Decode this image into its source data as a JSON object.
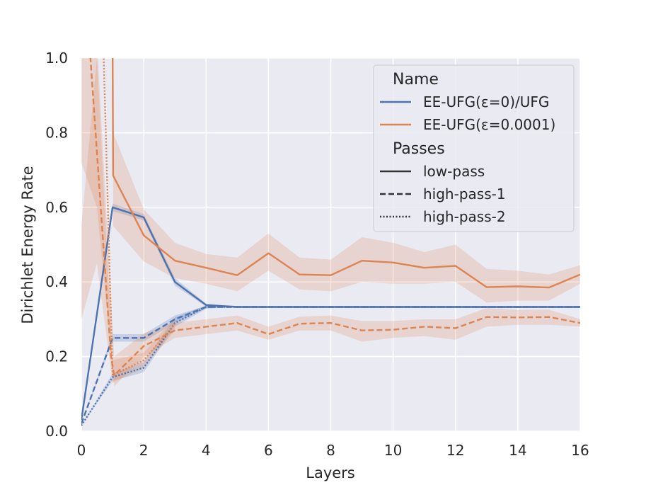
{
  "chart_data": {
    "type": "line",
    "xlabel": "Layers",
    "ylabel": "Dirichlet Energy Rate",
    "xlim": [
      0,
      16
    ],
    "ylim": [
      0,
      1
    ],
    "xticks": [
      "0",
      "2",
      "4",
      "6",
      "8",
      "10",
      "12",
      "14",
      "16"
    ],
    "yticks": [
      "0.0",
      "0.2",
      "0.4",
      "0.6",
      "0.8",
      "1.0"
    ],
    "grid": true,
    "legend": {
      "placement": "top-right",
      "hue_title": "Name",
      "hue_entries": [
        "EE-UFG(ε=0)/UFG",
        "EE-UFG(ε=0.0001)"
      ],
      "style_title": "Passes",
      "style_entries": [
        "low-pass",
        "high-pass-1",
        "high-pass-2"
      ]
    },
    "colors": {
      "EE-UFG(ε=0)/UFG": "#4c72b0",
      "EE-UFG(ε=0.0001)": "#dd8452",
      "background": "#eaeaf2",
      "grid": "#ffffff"
    },
    "series": [
      {
        "name": "EE-UFG(ε=0)/UFG",
        "pass": "low-pass",
        "dash": "solid",
        "points": [
          [
            0,
            0.03
          ],
          [
            1,
            0.6
          ],
          [
            2,
            0.573
          ],
          [
            3,
            0.4
          ],
          [
            4,
            0.338
          ],
          [
            5,
            0.333
          ],
          [
            6,
            0.333
          ],
          [
            7,
            0.333
          ],
          [
            8,
            0.333
          ],
          [
            9,
            0.333
          ],
          [
            10,
            0.333
          ],
          [
            11,
            0.333
          ],
          [
            12,
            0.333
          ],
          [
            13,
            0.333
          ],
          [
            14,
            0.333
          ],
          [
            15,
            0.333
          ],
          [
            16,
            0.333
          ]
        ],
        "band": [
          [
            0,
            0.03,
            0.03
          ],
          [
            1,
            0.59,
            0.61
          ],
          [
            2,
            0.565,
            0.582
          ],
          [
            3,
            0.39,
            0.41
          ],
          [
            4,
            0.334,
            0.342
          ],
          [
            5,
            0.333,
            0.334
          ],
          [
            6,
            0.333,
            0.333
          ],
          [
            16,
            0.333,
            0.333
          ]
        ]
      },
      {
        "name": "EE-UFG(ε=0)/UFG",
        "pass": "high-pass-1",
        "dash": "dashed",
        "points": [
          [
            0,
            0.02
          ],
          [
            1,
            0.25
          ],
          [
            2,
            0.25
          ],
          [
            3,
            0.3
          ],
          [
            4,
            0.333
          ],
          [
            5,
            0.333
          ],
          [
            6,
            0.333
          ],
          [
            7,
            0.333
          ],
          [
            8,
            0.333
          ],
          [
            9,
            0.333
          ],
          [
            10,
            0.333
          ],
          [
            11,
            0.333
          ],
          [
            12,
            0.333
          ],
          [
            13,
            0.333
          ],
          [
            14,
            0.333
          ],
          [
            15,
            0.333
          ],
          [
            16,
            0.333
          ]
        ],
        "band": [
          [
            0,
            0.02,
            0.02
          ],
          [
            1,
            0.24,
            0.26
          ],
          [
            2,
            0.24,
            0.26
          ],
          [
            3,
            0.29,
            0.31
          ],
          [
            4,
            0.33,
            0.336
          ],
          [
            5,
            0.333,
            0.333
          ],
          [
            16,
            0.333,
            0.333
          ]
        ]
      },
      {
        "name": "EE-UFG(ε=0)/UFG",
        "pass": "high-pass-2",
        "dash": "dotted",
        "points": [
          [
            0,
            0.015
          ],
          [
            1,
            0.145
          ],
          [
            2,
            0.17
          ],
          [
            3,
            0.29
          ],
          [
            4,
            0.333
          ],
          [
            5,
            0.333
          ],
          [
            6,
            0.333
          ],
          [
            7,
            0.333
          ],
          [
            8,
            0.333
          ],
          [
            9,
            0.333
          ],
          [
            10,
            0.333
          ],
          [
            11,
            0.333
          ],
          [
            12,
            0.333
          ],
          [
            13,
            0.333
          ],
          [
            14,
            0.333
          ],
          [
            15,
            0.333
          ],
          [
            16,
            0.333
          ]
        ],
        "band": [
          [
            0,
            0.015,
            0.015
          ],
          [
            1,
            0.135,
            0.155
          ],
          [
            2,
            0.158,
            0.185
          ],
          [
            3,
            0.28,
            0.305
          ],
          [
            4,
            0.328,
            0.337
          ],
          [
            5,
            0.333,
            0.333
          ],
          [
            16,
            0.333,
            0.333
          ]
        ]
      },
      {
        "name": "EE-UFG(ε=0.0001)",
        "pass": "low-pass",
        "dash": "solid",
        "points": [
          [
            1,
            1.05
          ],
          [
            1.02,
            0.685
          ],
          [
            2,
            0.525
          ],
          [
            3,
            0.457
          ],
          [
            4,
            0.438
          ],
          [
            5,
            0.418
          ],
          [
            6,
            0.477
          ],
          [
            7,
            0.42
          ],
          [
            8,
            0.418
          ],
          [
            9,
            0.457
          ],
          [
            10,
            0.452
          ],
          [
            11,
            0.438
          ],
          [
            12,
            0.443
          ],
          [
            13,
            0.386
          ],
          [
            14,
            0.388
          ],
          [
            15,
            0.385
          ],
          [
            16,
            0.42
          ]
        ],
        "band": [
          [
            1.02,
            0.55,
            0.8
          ],
          [
            2,
            0.455,
            0.595
          ],
          [
            3,
            0.41,
            0.505
          ],
          [
            4,
            0.395,
            0.475
          ],
          [
            5,
            0.375,
            0.465
          ],
          [
            6,
            0.43,
            0.53
          ],
          [
            7,
            0.38,
            0.465
          ],
          [
            8,
            0.375,
            0.46
          ],
          [
            9,
            0.4,
            0.52
          ],
          [
            10,
            0.395,
            0.505
          ],
          [
            11,
            0.395,
            0.48
          ],
          [
            12,
            0.4,
            0.5
          ],
          [
            13,
            0.345,
            0.435
          ],
          [
            14,
            0.35,
            0.43
          ],
          [
            15,
            0.35,
            0.42
          ],
          [
            16,
            0.395,
            0.445
          ]
        ]
      },
      {
        "name": "EE-UFG(ε=0.0001)",
        "pass": "high-pass-1",
        "dash": "dashed",
        "points": [
          [
            0.25,
            1.05
          ],
          [
            0.95,
            0.2
          ],
          [
            1.05,
            0.15
          ],
          [
            2,
            0.228
          ],
          [
            3,
            0.27
          ],
          [
            4,
            0.28
          ],
          [
            5,
            0.29
          ],
          [
            6,
            0.26
          ],
          [
            7,
            0.288
          ],
          [
            8,
            0.29
          ],
          [
            9,
            0.27
          ],
          [
            10,
            0.272
          ],
          [
            11,
            0.28
          ],
          [
            12,
            0.276
          ],
          [
            13,
            0.306
          ],
          [
            14,
            0.305
          ],
          [
            15,
            0.306
          ],
          [
            16,
            0.29
          ]
        ],
        "band": [
          [
            0,
            0.72,
            1.05
          ],
          [
            0.5,
            0.6,
            1.05
          ],
          [
            1.05,
            0.12,
            0.2
          ],
          [
            2,
            0.2,
            0.262
          ],
          [
            3,
            0.25,
            0.29
          ],
          [
            4,
            0.26,
            0.3
          ],
          [
            5,
            0.27,
            0.31
          ],
          [
            6,
            0.245,
            0.28
          ],
          [
            7,
            0.27,
            0.307
          ],
          [
            8,
            0.27,
            0.31
          ],
          [
            9,
            0.24,
            0.295
          ],
          [
            10,
            0.25,
            0.295
          ],
          [
            11,
            0.255,
            0.3
          ],
          [
            12,
            0.245,
            0.3
          ],
          [
            13,
            0.28,
            0.33
          ],
          [
            14,
            0.285,
            0.325
          ],
          [
            15,
            0.285,
            0.326
          ],
          [
            16,
            0.28,
            0.3
          ]
        ]
      },
      {
        "name": "EE-UFG(ε=0.0001)",
        "pass": "high-pass-2",
        "dash": "dotted",
        "points": [
          [
            0.7,
            1.05
          ],
          [
            0.85,
            0.6
          ],
          [
            1,
            0.15
          ],
          [
            2,
            0.19
          ],
          [
            3,
            0.288
          ]
        ],
        "band": [
          [
            0,
            0.3,
            0.55
          ],
          [
            0.5,
            0.45,
            1.0
          ],
          [
            1,
            0.13,
            0.19
          ],
          [
            2,
            0.17,
            0.21
          ],
          [
            3,
            0.27,
            0.305
          ]
        ]
      }
    ]
  }
}
